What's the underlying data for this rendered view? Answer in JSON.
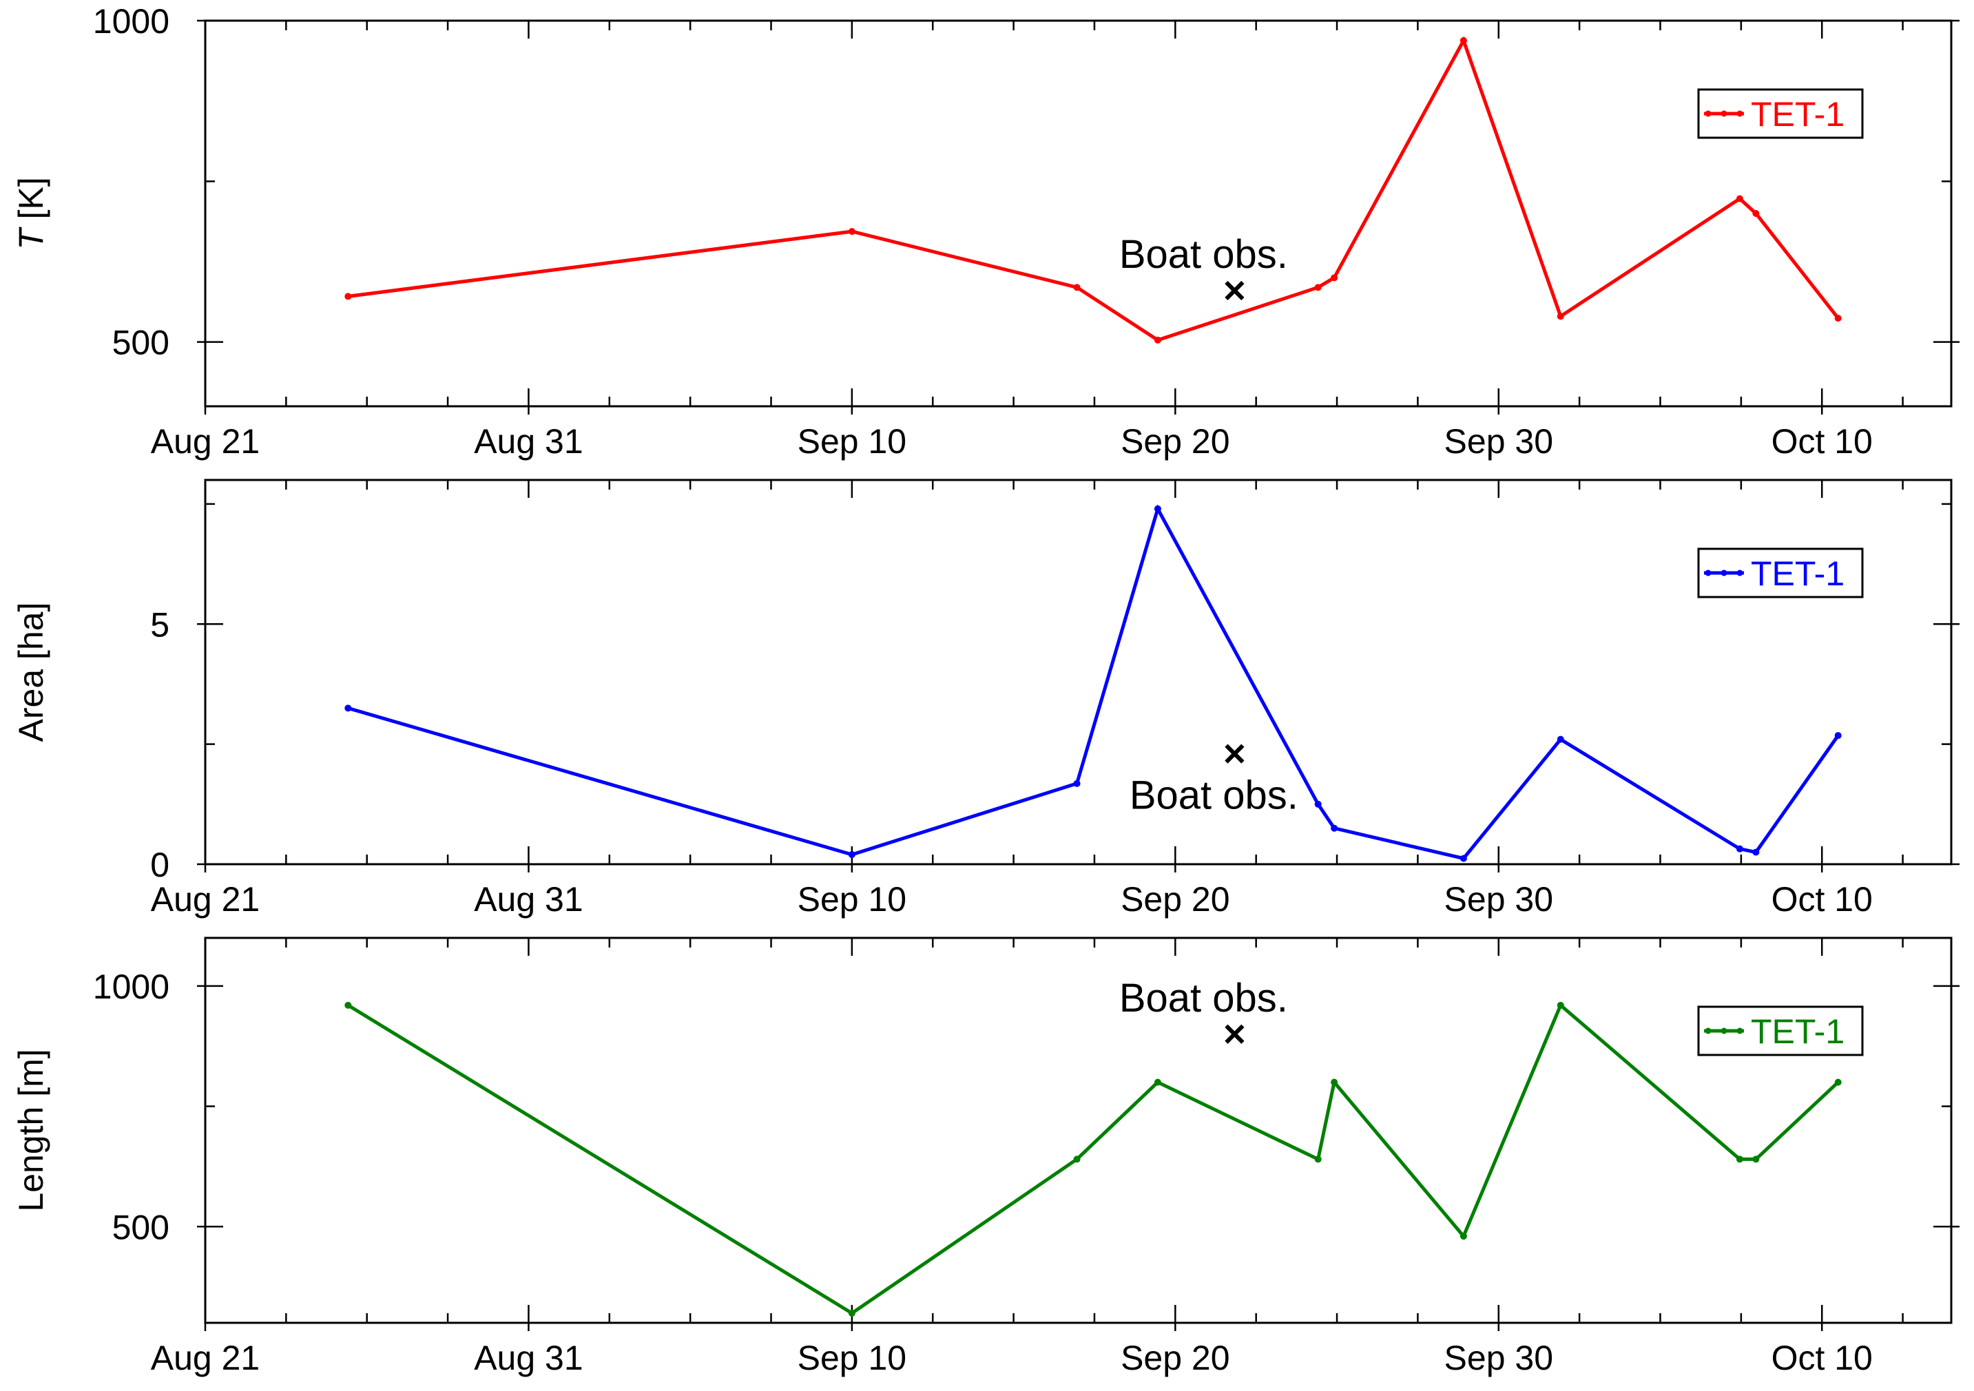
{
  "figure": {
    "x_tick_labels": [
      "Aug 21",
      "Aug 31",
      "Sep 10",
      "Sep 20",
      "Sep 30",
      "Oct 10"
    ]
  },
  "chart_data": [
    {
      "type": "line",
      "title": "",
      "xlabel": "",
      "ylabel": "T [K]",
      "ylabel_italic": "T",
      "ylabel_rest": " [K]",
      "x_axis": {
        "type": "date",
        "range": [
          "2013-08-21",
          "2013-10-14"
        ],
        "major_tick_days": 10,
        "minor_tick_days": 2.5
      },
      "ylim": [
        400,
        1000
      ],
      "yticks": [
        {
          "value": 500,
          "label": "500"
        },
        {
          "value": 1000,
          "label": "1000"
        }
      ],
      "y_minor_ticks": [
        750
      ],
      "grid": false,
      "legend": {
        "position": "top-right",
        "entries": [
          "TET-1"
        ]
      },
      "series": [
        {
          "name": "TET-1",
          "color": "#ff0000",
          "points": [
            {
              "x": "2013-08-25T10:00",
              "y": 571
            },
            {
              "x": "2013-09-10T00:00",
              "y": 672
            },
            {
              "x": "2013-09-16T23:00",
              "y": 585
            },
            {
              "x": "2013-09-19T11:00",
              "y": 503
            },
            {
              "x": "2013-09-24T10:00",
              "y": 585
            },
            {
              "x": "2013-09-24T22:00",
              "y": 600
            },
            {
              "x": "2013-09-28T22:00",
              "y": 969
            },
            {
              "x": "2013-10-01T22:00",
              "y": 540
            },
            {
              "x": "2013-10-07T11:00",
              "y": 723
            },
            {
              "x": "2013-10-07T23:00",
              "y": 700
            },
            {
              "x": "2013-10-10T12:00",
              "y": 537
            }
          ]
        }
      ],
      "boat_obs": {
        "x": "2013-09-21T20:00",
        "y": 580,
        "marker": "x",
        "label": "Boat obs.",
        "label_position": "above"
      }
    },
    {
      "type": "line",
      "title": "",
      "xlabel": "",
      "ylabel": "Area [ha]",
      "x_axis": {
        "type": "date",
        "range": [
          "2013-08-21",
          "2013-10-14"
        ],
        "major_tick_days": 10,
        "minor_tick_days": 2.5
      },
      "ylim": [
        0,
        8
      ],
      "yticks": [
        {
          "value": 0,
          "label": "0"
        },
        {
          "value": 5,
          "label": "5"
        }
      ],
      "y_minor_ticks": [
        2.5,
        7.5
      ],
      "grid": false,
      "legend": {
        "position": "top-right",
        "entries": [
          "TET-1"
        ]
      },
      "series": [
        {
          "name": "TET-1",
          "color": "#0000ff",
          "points": [
            {
              "x": "2013-08-25T10:00",
              "y": 3.25
            },
            {
              "x": "2013-09-10T00:00",
              "y": 0.2
            },
            {
              "x": "2013-09-16T23:00",
              "y": 1.68
            },
            {
              "x": "2013-09-19T11:00",
              "y": 7.4
            },
            {
              "x": "2013-09-24T10:00",
              "y": 1.25
            },
            {
              "x": "2013-09-24T22:00",
              "y": 0.75
            },
            {
              "x": "2013-09-28T22:00",
              "y": 0.12
            },
            {
              "x": "2013-10-01T22:00",
              "y": 2.6
            },
            {
              "x": "2013-10-07T11:00",
              "y": 0.32
            },
            {
              "x": "2013-10-07T23:00",
              "y": 0.25
            },
            {
              "x": "2013-10-10T12:00",
              "y": 2.68
            }
          ]
        }
      ],
      "boat_obs": {
        "x": "2013-09-21T20:00",
        "y": 2.3,
        "marker": "x",
        "label": "Boat obs.",
        "label_position": "below"
      }
    },
    {
      "type": "line",
      "title": "",
      "xlabel": "",
      "ylabel": "Length [m]",
      "x_axis": {
        "type": "date",
        "range": [
          "2013-08-21",
          "2013-10-14"
        ],
        "major_tick_days": 10,
        "minor_tick_days": 2.5
      },
      "ylim": [
        300,
        1100
      ],
      "yticks": [
        {
          "value": 500,
          "label": "500"
        },
        {
          "value": 1000,
          "label": "1000"
        }
      ],
      "y_minor_ticks": [
        750
      ],
      "grid": false,
      "legend": {
        "position": "top-right",
        "entries": [
          "TET-1"
        ]
      },
      "series": [
        {
          "name": "TET-1",
          "color": "#008000",
          "points": [
            {
              "x": "2013-08-25T10:00",
              "y": 960
            },
            {
              "x": "2013-09-10T00:00",
              "y": 320
            },
            {
              "x": "2013-09-16T23:00",
              "y": 640
            },
            {
              "x": "2013-09-19T11:00",
              "y": 800
            },
            {
              "x": "2013-09-24T10:00",
              "y": 640
            },
            {
              "x": "2013-09-24T22:00",
              "y": 800
            },
            {
              "x": "2013-09-28T22:00",
              "y": 480
            },
            {
              "x": "2013-10-01T22:00",
              "y": 960
            },
            {
              "x": "2013-10-07T11:00",
              "y": 640
            },
            {
              "x": "2013-10-07T23:00",
              "y": 640
            },
            {
              "x": "2013-10-10T12:00",
              "y": 800
            }
          ]
        }
      ],
      "boat_obs": {
        "x": "2013-09-21T20:00",
        "y": 900,
        "marker": "x",
        "label": "Boat obs.",
        "label_position": "above"
      }
    }
  ]
}
